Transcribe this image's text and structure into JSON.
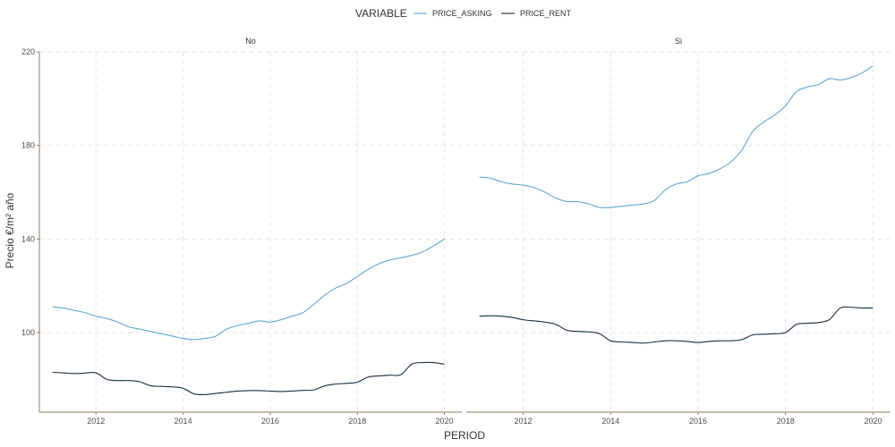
{
  "chart_data": {
    "type": "line",
    "xlabel": "PERIOD",
    "ylabel": "Precio €/m² año",
    "legend": {
      "title": "VARIABLE",
      "position": "top",
      "entries": [
        {
          "name": "PRICE_ASKING",
          "color": "#5aa9cf"
        },
        {
          "name": "PRICE_RENT",
          "color": "#1a2e3b"
        }
      ]
    },
    "ylim": [
      66,
      220
    ],
    "xlim": [
      2010.7,
      2020.4
    ],
    "x_ticks": [
      2012,
      2014,
      2016,
      2018,
      2020
    ],
    "y_ticks": [
      100,
      140,
      180,
      220
    ],
    "grid": true,
    "facets": [
      {
        "label": "No",
        "series": [
          {
            "name": "PRICE_ASKING",
            "color": "#5aa9cf",
            "x": [
              2011.0,
              2011.25,
              2011.5,
              2011.75,
              2012.0,
              2012.25,
              2012.5,
              2012.75,
              2013.0,
              2013.25,
              2013.5,
              2013.75,
              2014.0,
              2014.25,
              2014.5,
              2014.75,
              2015.0,
              2015.25,
              2015.5,
              2015.75,
              2016.0,
              2016.25,
              2016.5,
              2016.75,
              2017.0,
              2017.25,
              2017.5,
              2017.75,
              2018.0,
              2018.25,
              2018.5,
              2018.75,
              2019.0,
              2019.25,
              2019.5,
              2019.75,
              2020.0
            ],
            "y": [
              111,
              110.5,
              109.5,
              108.5,
              107,
              106,
              104.5,
              102.5,
              101.5,
              100.5,
              99.5,
              98.5,
              97.5,
              97,
              97.5,
              98.5,
              101.5,
              103,
              104,
              105,
              104.5,
              105.5,
              107,
              108.5,
              112,
              116,
              119,
              121,
              124,
              127,
              129.5,
              131,
              132,
              133,
              134.5,
              137,
              140
            ]
          },
          {
            "name": "PRICE_RENT",
            "color": "#1a2e3b",
            "x": [
              2011.0,
              2011.25,
              2011.5,
              2011.75,
              2012.0,
              2012.25,
              2012.5,
              2012.75,
              2013.0,
              2013.25,
              2013.5,
              2013.75,
              2014.0,
              2014.25,
              2014.5,
              2014.75,
              2015.0,
              2015.25,
              2015.5,
              2015.75,
              2016.0,
              2016.25,
              2016.5,
              2016.75,
              2017.0,
              2017.25,
              2017.5,
              2017.75,
              2018.0,
              2018.25,
              2018.5,
              2018.75,
              2019.0,
              2019.25,
              2019.5,
              2019.75,
              2020.0
            ],
            "y": [
              83,
              82.8,
              82.5,
              82.7,
              82.8,
              80,
              79.5,
              79.5,
              79,
              77.3,
              77,
              76.8,
              76.2,
              73.8,
              73.5,
              74,
              74.5,
              75,
              75.2,
              75.2,
              75,
              74.8,
              75,
              75.3,
              75.5,
              77.2,
              78,
              78.3,
              78.8,
              81,
              81.5,
              81.8,
              82,
              86.5,
              87.2,
              87.2,
              86.5
            ]
          }
        ]
      },
      {
        "label": "Si",
        "series": [
          {
            "name": "PRICE_ASKING",
            "color": "#5aa9cf",
            "x": [
              2011.0,
              2011.25,
              2011.5,
              2011.75,
              2012.0,
              2012.25,
              2012.5,
              2012.75,
              2013.0,
              2013.25,
              2013.5,
              2013.75,
              2014.0,
              2014.25,
              2014.5,
              2014.75,
              2015.0,
              2015.25,
              2015.5,
              2015.75,
              2016.0,
              2016.25,
              2016.5,
              2016.75,
              2017.0,
              2017.25,
              2017.5,
              2017.75,
              2018.0,
              2018.25,
              2018.5,
              2018.75,
              2019.0,
              2019.25,
              2019.5,
              2019.75,
              2020.0
            ],
            "y": [
              166.5,
              166,
              164.5,
              163.5,
              163,
              162,
              160,
              157.5,
              156,
              156,
              155,
              153.5,
              153.5,
              154,
              154.5,
              155,
              156.5,
              161,
              163.5,
              164.5,
              167,
              168,
              170,
              173,
              178,
              186,
              190,
              193,
              197,
              203,
              205,
              206,
              208.5,
              208,
              209,
              211,
              214
            ]
          },
          {
            "name": "PRICE_RENT",
            "color": "#1a2e3b",
            "x": [
              2011.0,
              2011.25,
              2011.5,
              2011.75,
              2012.0,
              2012.25,
              2012.5,
              2012.75,
              2013.0,
              2013.25,
              2013.5,
              2013.75,
              2014.0,
              2014.25,
              2014.5,
              2014.75,
              2015.0,
              2015.25,
              2015.5,
              2015.75,
              2016.0,
              2016.25,
              2016.5,
              2016.75,
              2017.0,
              2017.25,
              2017.5,
              2017.75,
              2018.0,
              2018.25,
              2018.5,
              2018.75,
              2019.0,
              2019.25,
              2019.5,
              2019.75,
              2020.0
            ],
            "y": [
              107,
              107.2,
              107,
              106.5,
              105.5,
              105,
              104.5,
              103.5,
              101,
              100.5,
              100.3,
              99.5,
              96.5,
              96,
              95.8,
              95.5,
              96,
              96.5,
              96.5,
              96.2,
              95.8,
              96.2,
              96.5,
              96.5,
              97,
              99,
              99.3,
              99.5,
              100,
              103.5,
              104,
              104.3,
              105.5,
              110.5,
              110.8,
              110.5,
              110.5
            ]
          }
        ]
      }
    ]
  }
}
